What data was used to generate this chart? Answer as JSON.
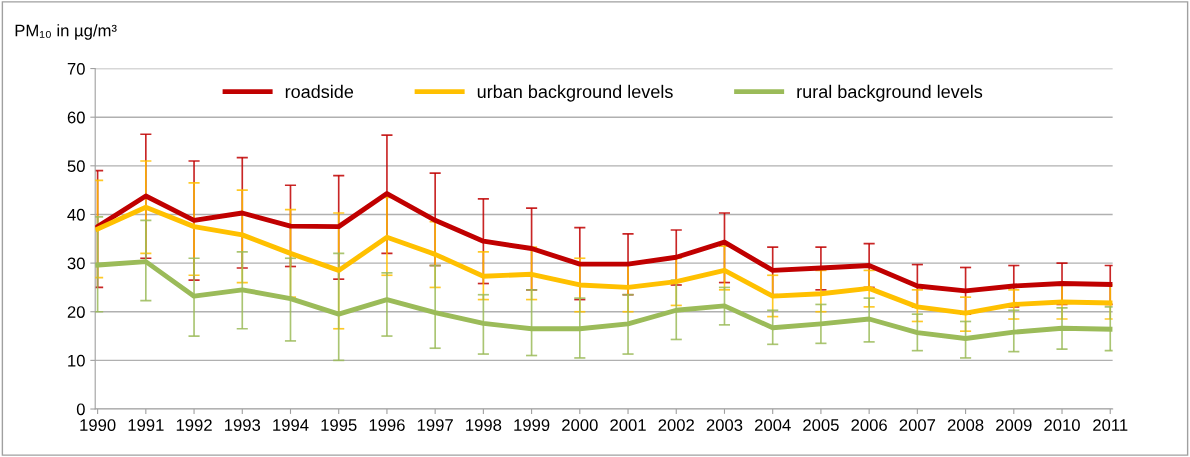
{
  "chart_data": {
    "type": "line",
    "ylabel": "PM₁₀ in µg/m³",
    "categories": [
      "1990",
      "1991",
      "1992",
      "1993",
      "1994",
      "1995",
      "1996",
      "1997",
      "1998",
      "1999",
      "2000",
      "2001",
      "2002",
      "2003",
      "2004",
      "2005",
      "2006",
      "2007",
      "2008",
      "2009",
      "2010",
      "2011"
    ],
    "series": [
      {
        "name": "roadside",
        "color": "#c00000",
        "values": [
          37.5,
          43.8,
          38.8,
          40.3,
          37.6,
          37.5,
          44.3,
          38.8,
          34.5,
          33,
          29.8,
          29.8,
          31.2,
          34.3,
          28.5,
          29,
          29.5,
          25.3,
          24.3,
          25.3,
          25.8,
          25.6
        ],
        "errors": [
          [
            25,
            49
          ],
          [
            31,
            56.5
          ],
          [
            26.5,
            51
          ],
          [
            29,
            51.7
          ],
          [
            29.3,
            46
          ],
          [
            26.7,
            48
          ],
          [
            32,
            56.3
          ],
          [
            29.5,
            48.5
          ],
          [
            25.8,
            43.2
          ],
          [
            24.5,
            41.3
          ],
          [
            22.5,
            37.3
          ],
          [
            23.5,
            36
          ],
          [
            25.5,
            36.8
          ],
          [
            26,
            40.3
          ],
          [
            23.5,
            33.3
          ],
          [
            24.5,
            33.3
          ],
          [
            25,
            34
          ],
          [
            21,
            29.7
          ],
          [
            19.5,
            29.1
          ],
          [
            21,
            29.5
          ],
          [
            21.5,
            30
          ],
          [
            21.5,
            29.5
          ]
        ]
      },
      {
        "name": "urban background levels",
        "color": "#ffc000",
        "values": [
          37,
          41.5,
          37.5,
          35.8,
          32,
          28.5,
          35.3,
          31.8,
          27.3,
          27.7,
          25.5,
          25,
          26.2,
          28.5,
          23.2,
          23.7,
          24.8,
          21,
          19.7,
          21.5,
          22,
          21.8
        ],
        "errors": [
          [
            27,
            47
          ],
          [
            32,
            51
          ],
          [
            27.5,
            46.5
          ],
          [
            26,
            45
          ],
          [
            23,
            41
          ],
          [
            16.5,
            40.3
          ],
          [
            27.5,
            43.5
          ],
          [
            25,
            38.5
          ],
          [
            22.5,
            32.3
          ],
          [
            22.5,
            33.3
          ],
          [
            20,
            31
          ],
          [
            20,
            30
          ],
          [
            21.3,
            31
          ],
          [
            24.5,
            33.5
          ],
          [
            19,
            27.5
          ],
          [
            20,
            28.5
          ],
          [
            21,
            28.5
          ],
          [
            18,
            24.5
          ],
          [
            16,
            23
          ],
          [
            18.5,
            24.5
          ],
          [
            18.5,
            25.5
          ],
          [
            18.5,
            25.5
          ]
        ]
      },
      {
        "name": "rural background levels",
        "color": "#9bbb59",
        "values": [
          29.6,
          30.3,
          23.2,
          24.5,
          22.7,
          19.5,
          22.5,
          19.8,
          17.6,
          16.5,
          16.5,
          17.5,
          20.3,
          21.2,
          16.7,
          17.5,
          18.5,
          15.7,
          14.5,
          15.8,
          16.6,
          16.4
        ],
        "errors": [
          [
            20,
            39.5
          ],
          [
            22.3,
            38.8
          ],
          [
            15,
            31
          ],
          [
            16.5,
            32.3
          ],
          [
            14,
            31
          ],
          [
            10,
            32
          ],
          [
            15,
            28
          ],
          [
            12.5,
            29.5
          ],
          [
            11.3,
            23.5
          ],
          [
            11,
            24.5
          ],
          [
            10.5,
            22.8
          ],
          [
            11.3,
            23.5
          ],
          [
            14.3,
            26.5
          ],
          [
            17.3,
            25
          ],
          [
            13.3,
            20.3
          ],
          [
            13.5,
            21.5
          ],
          [
            13.8,
            22.8
          ],
          [
            12,
            19.5
          ],
          [
            10.5,
            18
          ],
          [
            11.8,
            20.3
          ],
          [
            12.3,
            20.8
          ],
          [
            12,
            21
          ]
        ]
      }
    ],
    "ylim": [
      0,
      70
    ],
    "yticks": [
      0,
      10,
      20,
      30,
      40,
      50,
      60,
      70
    ],
    "grid": "y",
    "legend": "top",
    "marker": "none",
    "line_style": "solid"
  }
}
